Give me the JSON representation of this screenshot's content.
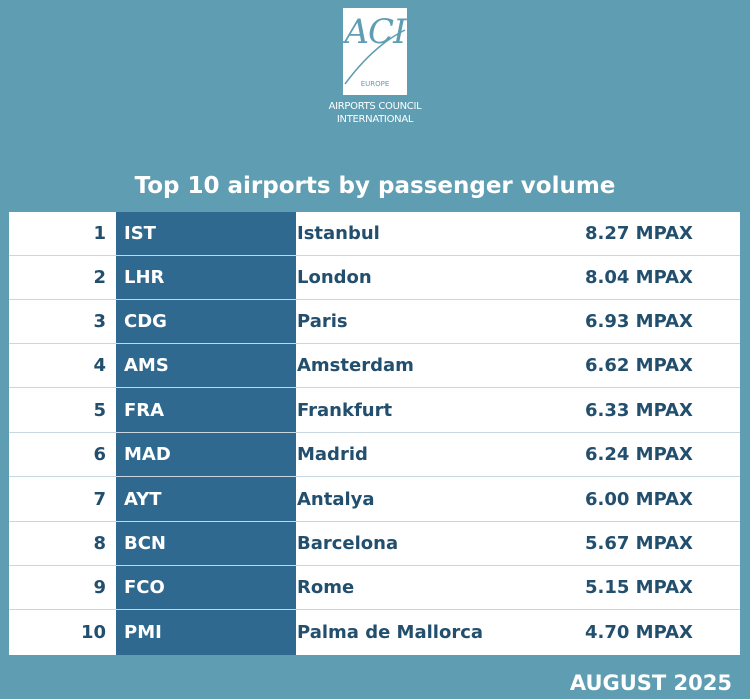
{
  "logo": {
    "mark": "ACI",
    "region": "EUROPE",
    "line1": "AIRPORTS COUNCIL",
    "line2": "INTERNATIONAL"
  },
  "title": "Top 10 airports by passenger volume",
  "rows": [
    {
      "rank": "1",
      "code": "IST",
      "city": "Istanbul",
      "value": "8.27 MPAX"
    },
    {
      "rank": "2",
      "code": "LHR",
      "city": "London",
      "value": "8.04 MPAX"
    },
    {
      "rank": "3",
      "code": "CDG",
      "city": "Paris",
      "value": "6.93 MPAX"
    },
    {
      "rank": "4",
      "code": "AMS",
      "city": "Amsterdam",
      "value": "6.62 MPAX"
    },
    {
      "rank": "5",
      "code": "FRA",
      "city": "Frankfurt",
      "value": "6.33 MPAX"
    },
    {
      "rank": "6",
      "code": "MAD",
      "city": "Madrid",
      "value": "6.24 MPAX"
    },
    {
      "rank": "7",
      "code": "AYT",
      "city": "Antalya",
      "value": "6.00 MPAX"
    },
    {
      "rank": "8",
      "code": "BCN",
      "city": "Barcelona",
      "value": "5.67 MPAX"
    },
    {
      "rank": "9",
      "code": "FCO",
      "city": "Rome",
      "value": "5.15 MPAX"
    },
    {
      "rank": "10",
      "code": "PMI",
      "city": "Palma de Mallorca",
      "value": "4.70 MPAX"
    }
  ],
  "footer": "AUGUST 2025",
  "colors": {
    "background": "#5e9db2",
    "code_column": "#30698f",
    "text_dark": "#234f6e"
  }
}
